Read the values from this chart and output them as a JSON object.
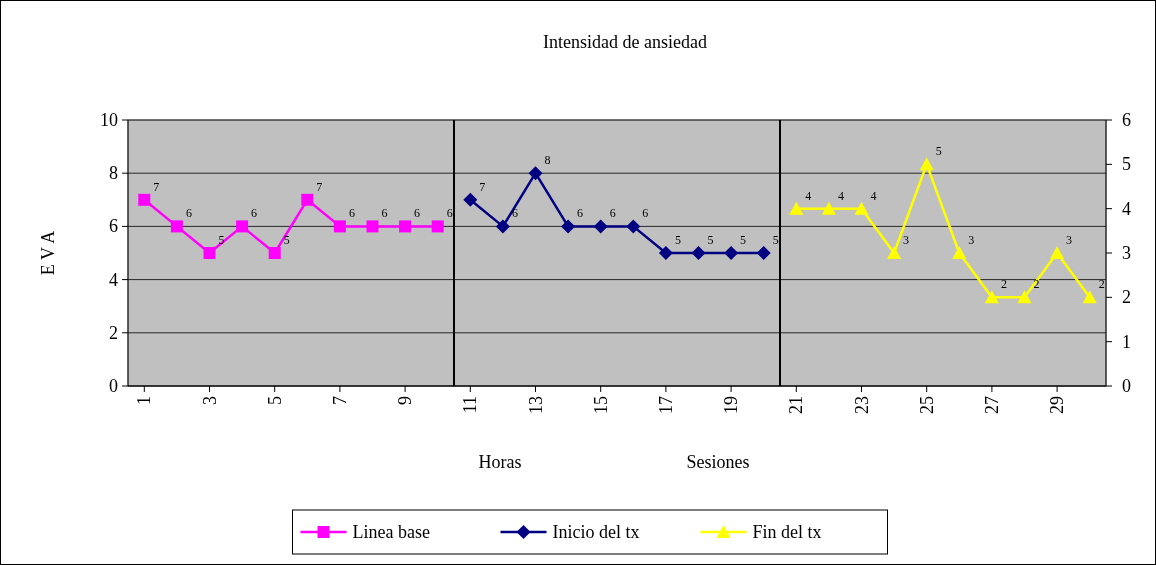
{
  "chart_data": {
    "type": "line",
    "title": "Intensidad de ansiedad",
    "ylabel": "E V A",
    "annotations": [
      "Horas",
      "Sesiones"
    ],
    "xlim": [
      0.5,
      30.5
    ],
    "xticks": [
      1,
      3,
      5,
      7,
      9,
      11,
      13,
      15,
      17,
      19,
      21,
      23,
      25,
      27,
      29
    ],
    "ylim": [
      0,
      10
    ],
    "yticks": [
      0,
      2,
      4,
      6,
      8,
      10
    ],
    "y2lim": [
      0,
      6
    ],
    "y2ticks": [
      0,
      1,
      2,
      3,
      4,
      5,
      6
    ],
    "grid": "y",
    "legend": "bottom",
    "data_labels": true,
    "ref_lines": [
      {
        "axis": "x",
        "value": 10.5,
        "color": "#000000"
      },
      {
        "axis": "x",
        "value": 20.5,
        "color": "#000000"
      }
    ],
    "series": [
      {
        "name": "Linea base",
        "color": "#ff00ff",
        "marker": "square",
        "x": [
          1,
          2,
          3,
          4,
          5,
          6,
          7,
          8,
          9,
          10
        ],
        "values": [
          7,
          6,
          5,
          6,
          5,
          7,
          6,
          6,
          6,
          6
        ]
      },
      {
        "name": "Inicio del tx",
        "color": "#000080",
        "marker": "diamond",
        "x": [
          11,
          12,
          13,
          14,
          15,
          16,
          17,
          18,
          19,
          20
        ],
        "values": [
          7,
          6,
          8,
          6,
          6,
          6,
          5,
          5,
          5,
          5
        ]
      },
      {
        "name": "Fin del tx",
        "color": "#ffff00",
        "marker": "triangle",
        "axis": "y2",
        "x": [
          21,
          22,
          23,
          24,
          25,
          26,
          27,
          28,
          29,
          30
        ],
        "values": [
          4,
          4,
          4,
          3,
          5,
          3,
          2,
          2,
          3,
          2
        ]
      }
    ]
  }
}
